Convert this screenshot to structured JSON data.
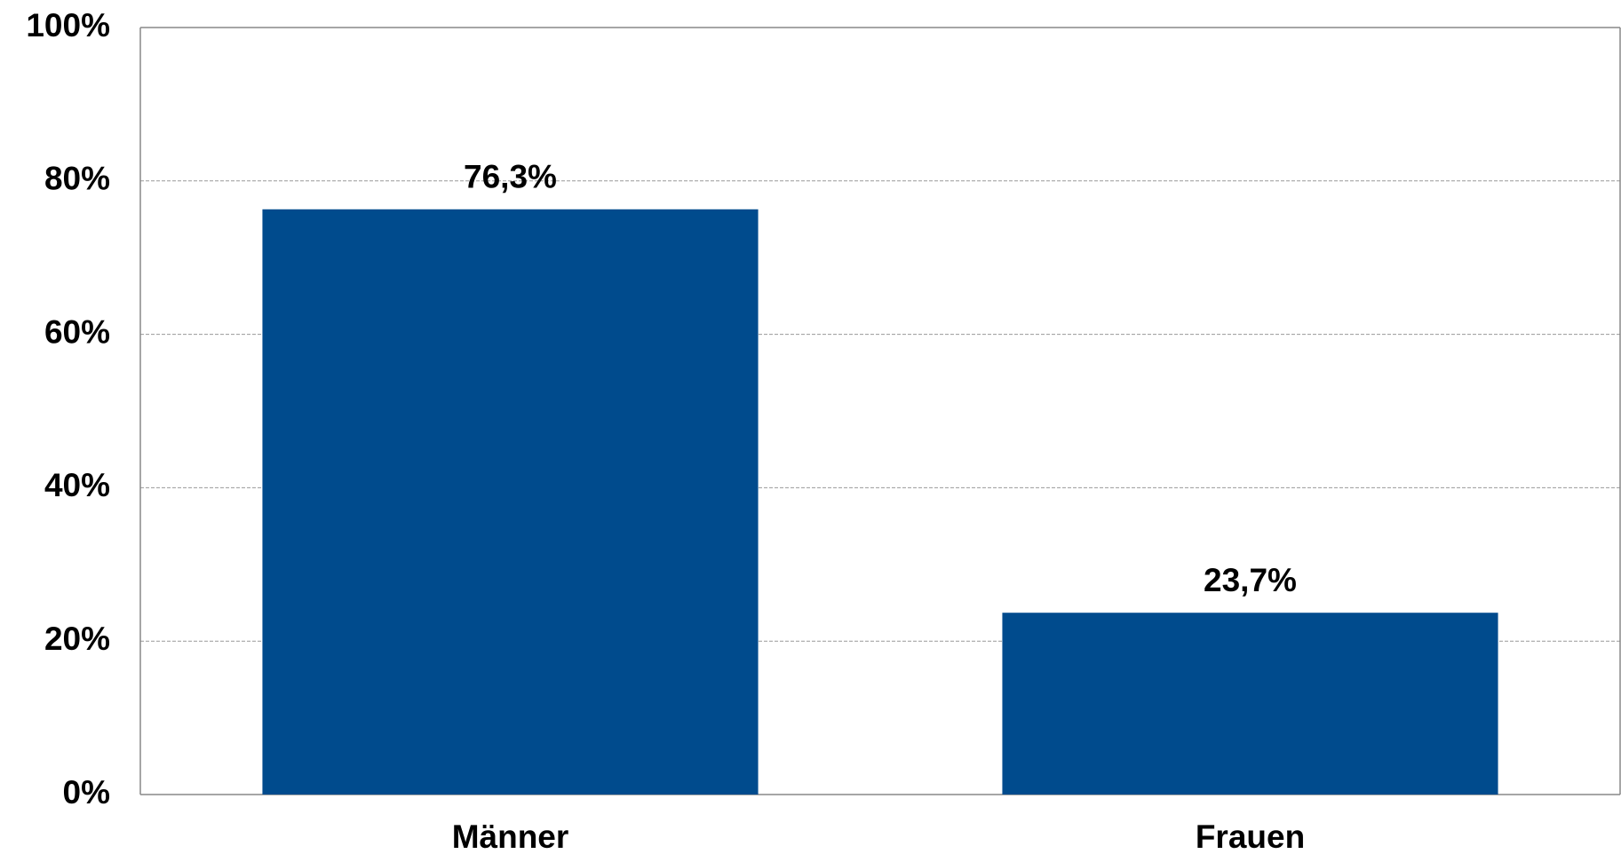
{
  "chart_data": {
    "type": "bar",
    "categories": [
      "Männer",
      "Frauen"
    ],
    "values": [
      76.3,
      23.7
    ],
    "value_labels": [
      "76,3%",
      "23,7%"
    ],
    "color": "#004b8d",
    "ylim": [
      0,
      100
    ],
    "yticks": [
      {
        "value": 0,
        "label": "0%"
      },
      {
        "value": 20,
        "label": "20%"
      },
      {
        "value": 40,
        "label": "40%"
      },
      {
        "value": 60,
        "label": "60%"
      },
      {
        "value": 80,
        "label": "80%"
      },
      {
        "value": 100,
        "label": "100%"
      }
    ],
    "grid": true
  }
}
